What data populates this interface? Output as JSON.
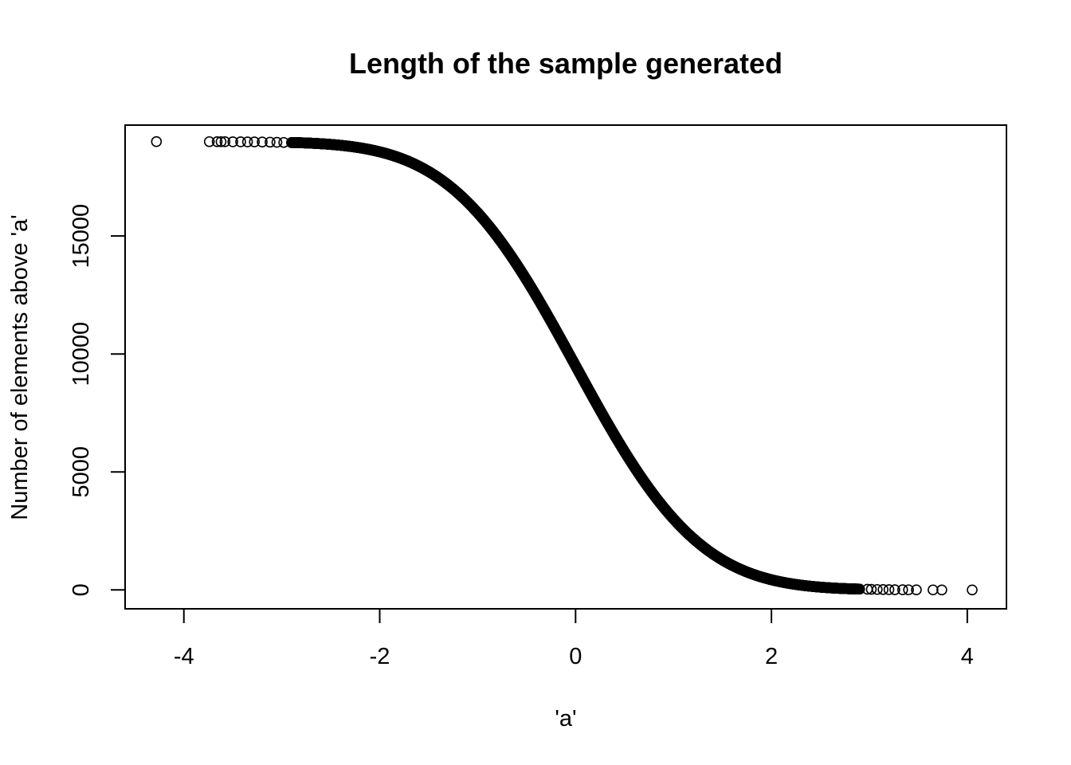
{
  "chart_data": {
    "type": "scatter",
    "title": "Length of the sample generated",
    "xlabel": "'a'",
    "ylabel": "Number of elements above 'a'",
    "xlim": [
      -4.6,
      4.4
    ],
    "ylim": [
      -800,
      19700
    ],
    "x_ticks": [
      -4,
      -2,
      0,
      2,
      4
    ],
    "x_tick_labels": [
      "-4",
      "-2",
      "0",
      "2",
      "4"
    ],
    "y_ticks": [
      0,
      5000,
      10000,
      15000
    ],
    "y_tick_labels": [
      "0",
      "5000",
      "10000",
      "15000"
    ],
    "grid": false,
    "legend": "none",
    "marker": "open-circle",
    "series": [
      {
        "total_n": 19000,
        "description_points": [
          {
            "x": -4.28,
            "y": 19000
          },
          {
            "x": -3.74,
            "y": 18999
          },
          {
            "x": -3.66,
            "y": 18998
          },
          {
            "x": -3.62,
            "y": 18997
          },
          {
            "x": -3.58,
            "y": 18996
          },
          {
            "x": -3.5,
            "y": 18994
          },
          {
            "x": -3.42,
            "y": 18992
          },
          {
            "x": -3.35,
            "y": 18990
          },
          {
            "x": -3.28,
            "y": 18987
          },
          {
            "x": -3.2,
            "y": 18983
          },
          {
            "x": -3.12,
            "y": 18978
          },
          {
            "x": -3.05,
            "y": 18972
          },
          {
            "x": -2.98,
            "y": 18965
          },
          {
            "x": -2.9,
            "y": 18956
          },
          {
            "x": 2.9,
            "y": 36
          },
          {
            "x": 2.98,
            "y": 28
          },
          {
            "x": 3.02,
            "y": 24
          },
          {
            "x": 3.08,
            "y": 19
          },
          {
            "x": 3.14,
            "y": 16
          },
          {
            "x": 3.2,
            "y": 13
          },
          {
            "x": 3.26,
            "y": 10
          },
          {
            "x": 3.34,
            "y": 8
          },
          {
            "x": 3.4,
            "y": 6
          },
          {
            "x": 3.48,
            "y": 4
          },
          {
            "x": 3.65,
            "y": 2
          },
          {
            "x": 3.74,
            "y": 1
          },
          {
            "x": 4.05,
            "y": 0
          }
        ]
      }
    ]
  }
}
